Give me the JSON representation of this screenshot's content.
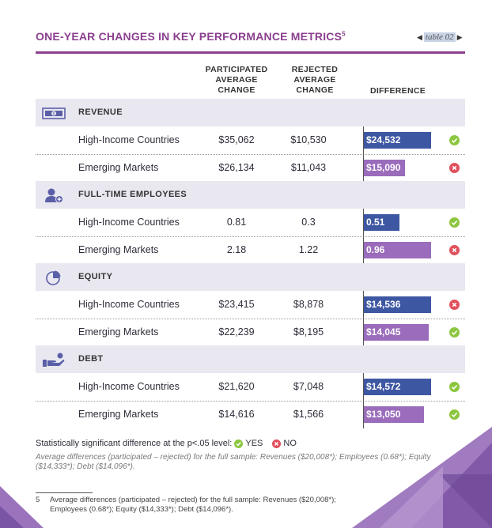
{
  "header": {
    "title": "ONE-YEAR CHANGES IN KEY PERFORMANCE METRICS",
    "title_sup": "5",
    "table_ref": "table 02"
  },
  "columns": {
    "participated": [
      "PARTICIPATED",
      "AVERAGE",
      "CHANGE"
    ],
    "rejected": [
      "REJECTED",
      "AVERAGE",
      "CHANGE"
    ],
    "difference": "DIFFERENCE"
  },
  "colors": {
    "accent": "#8b3f8f",
    "high_income_bar": "#3e57a3",
    "emerging_bar": "#9a6cbb",
    "category_band": "#e9e8f1",
    "yes": "#8cc63f",
    "no": "#e0505b"
  },
  "categories": [
    {
      "name": "REVENUE",
      "icon": "money-bill-icon",
      "rows": [
        {
          "label": "High-Income Countries",
          "participated": "$35,062",
          "rejected": "$10,530",
          "difference": "$24,532",
          "diff_value": 24532,
          "significant": "yes"
        },
        {
          "label": "Emerging Markets",
          "participated": "$26,134",
          "rejected": "$11,043",
          "difference": "$15,090",
          "diff_value": 15090,
          "significant": "no"
        }
      ]
    },
    {
      "name": "FULL-TIME EMPLOYEES",
      "icon": "add-person-icon",
      "rows": [
        {
          "label": "High-Income Countries",
          "participated": "0.81",
          "rejected": "0.3",
          "difference": "0.51",
          "diff_value": 0.51,
          "significant": "yes"
        },
        {
          "label": "Emerging Markets",
          "participated": "2.18",
          "rejected": "1.22",
          "difference": "0.96",
          "diff_value": 0.96,
          "significant": "no"
        }
      ]
    },
    {
      "name": "EQUITY",
      "icon": "pie-chart-icon",
      "rows": [
        {
          "label": "High-Income Countries",
          "participated": "$23,415",
          "rejected": "$8,878",
          "difference": "$14,536",
          "diff_value": 14536,
          "significant": "no"
        },
        {
          "label": "Emerging Markets",
          "participated": "$22,239",
          "rejected": "$8,195",
          "difference": "$14,045",
          "diff_value": 14045,
          "significant": "yes"
        }
      ]
    },
    {
      "name": "DEBT",
      "icon": "hand-coin-icon",
      "rows": [
        {
          "label": "High-Income Countries",
          "participated": "$21,620",
          "rejected": "$7,048",
          "difference": "$14,572",
          "diff_value": 14572,
          "significant": "yes"
        },
        {
          "label": "Emerging Markets",
          "participated": "$14,616",
          "rejected": "$1,566",
          "difference": "$13,050",
          "diff_value": 13050,
          "significant": "yes"
        }
      ]
    }
  ],
  "legend": {
    "text": "Statistically significant difference at the p<.05 level:",
    "yes": "YES",
    "no": "NO"
  },
  "note": "Average differences (participated – rejected) for the full sample: Revenues ($20,008*); Employees (0.68*); Equity ($14,333*); Debt ($14,096*).",
  "footnote": {
    "number": "5",
    "text": "Average differences (participated – rejected) for the full sample: Revenues ($20,008*); Employees (0.68*); Equity ($14,333*); Debt ($14,096*)."
  }
}
